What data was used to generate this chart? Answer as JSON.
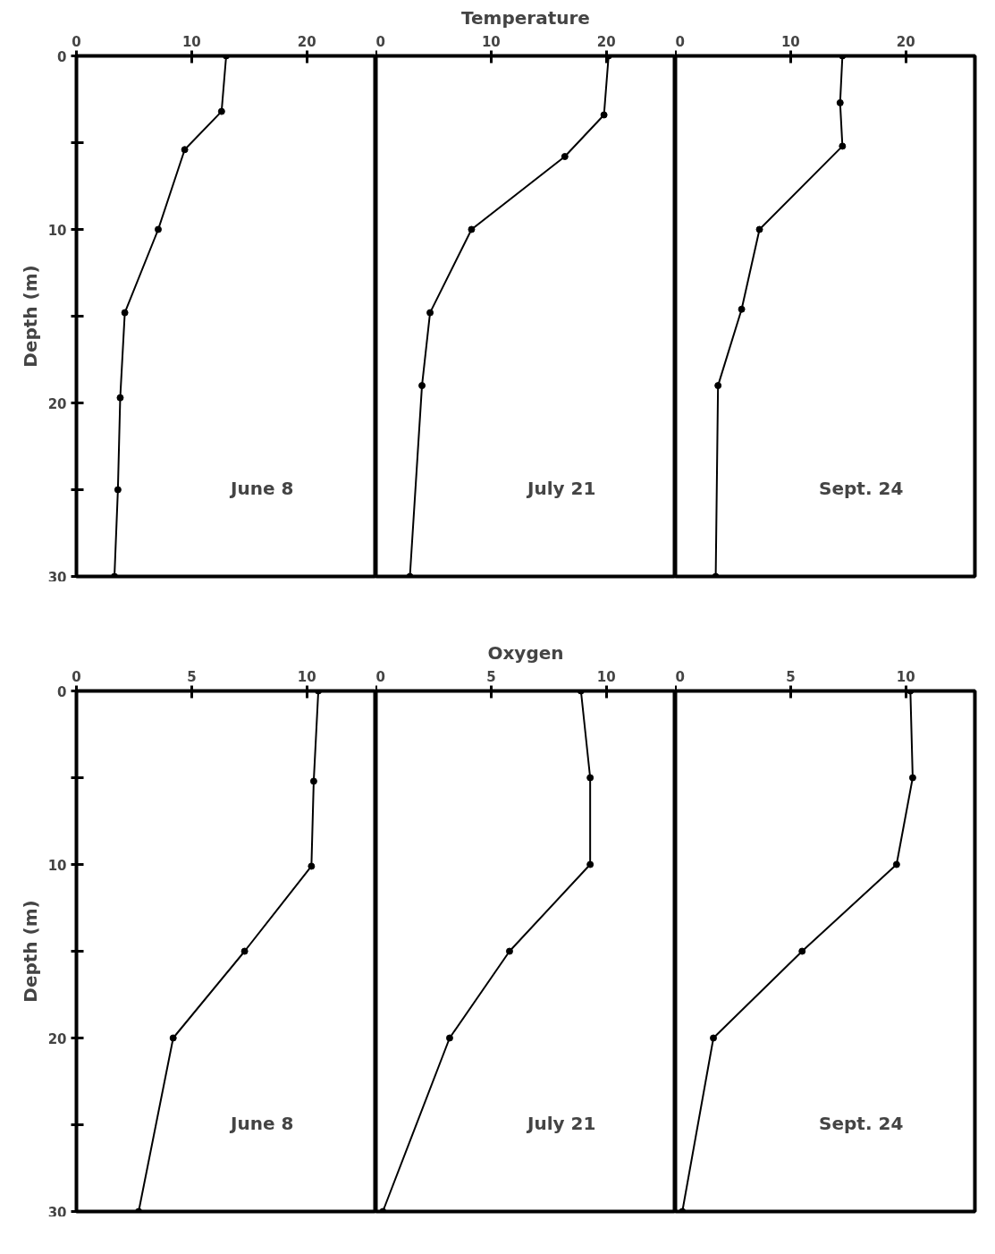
{
  "chart_data": [
    {
      "type": "line",
      "ylabel": "Depth (m)",
      "annotations": [
        "June 8"
      ],
      "xlim": [
        0,
        26
      ],
      "xticks": [
        0,
        10,
        20
      ],
      "ylim": [
        30,
        0
      ],
      "yticks": [
        0,
        {
          "value": 5,
          "label": null
        },
        10,
        {
          "value": 15,
          "label": null
        },
        20,
        {
          "value": 25,
          "label": null
        },
        30
      ],
      "grid": false,
      "marker": "circle",
      "line_style": "solid",
      "series": [
        {
          "color": "#000000",
          "x": [
            13.0,
            12.6,
            9.4,
            7.1,
            4.2,
            3.8,
            3.6,
            3.3
          ],
          "values": [
            0,
            3.2,
            5.4,
            10,
            14.8,
            19.7,
            25,
            30
          ]
        }
      ]
    },
    {
      "type": "line",
      "title": "Temperature",
      "annotations": [
        "July 21"
      ],
      "xlim": [
        0,
        26
      ],
      "xticks": [
        0,
        10,
        20
      ],
      "ylim": [
        30,
        0
      ],
      "tick_labels": "x",
      "grid": false,
      "marker": "circle",
      "line_style": "solid",
      "series": [
        {
          "color": "#000000",
          "x": [
            20.2,
            19.8,
            16.4,
            8.3,
            4.7,
            4.0,
            2.95
          ],
          "values": [
            0,
            3.4,
            5.8,
            10,
            14.8,
            19.0,
            30
          ]
        }
      ]
    },
    {
      "type": "line",
      "annotations": [
        "Sept. 24"
      ],
      "xlim": [
        0,
        26
      ],
      "xticks": [
        0,
        10,
        20
      ],
      "ylim": [
        30,
        0
      ],
      "tick_labels": "x",
      "grid": false,
      "marker": "circle",
      "line_style": "solid",
      "series": [
        {
          "color": "#000000",
          "x": [
            14.5,
            14.3,
            14.5,
            7.3,
            5.75,
            3.7,
            3.5
          ],
          "values": [
            0,
            2.7,
            5.2,
            10,
            14.6,
            19.0,
            30
          ]
        }
      ]
    },
    {
      "type": "line",
      "ylabel": "Depth (m)",
      "annotations": [
        "June 8"
      ],
      "xlim": [
        0,
        13
      ],
      "xticks": [
        0,
        5,
        10
      ],
      "ylim": [
        30,
        0
      ],
      "yticks": [
        0,
        {
          "value": 5,
          "label": null
        },
        10,
        {
          "value": 15,
          "label": null
        },
        20,
        {
          "value": 25,
          "label": null
        },
        30
      ],
      "grid": false,
      "marker": "circle",
      "line_style": "solid",
      "series": [
        {
          "color": "#000000",
          "x": [
            10.5,
            10.3,
            10.2,
            7.3,
            4.2,
            2.7
          ],
          "values": [
            0,
            5.2,
            10.1,
            15,
            20,
            30
          ]
        }
      ]
    },
    {
      "type": "line",
      "title": "Oxygen",
      "annotations": [
        "July 21"
      ],
      "xlim": [
        0,
        13
      ],
      "xticks": [
        0,
        5,
        10
      ],
      "ylim": [
        30,
        0
      ],
      "tick_labels": "x",
      "grid": false,
      "marker": "circle",
      "line_style": "solid",
      "series": [
        {
          "color": "#000000",
          "x": [
            8.9,
            9.3,
            9.3,
            5.8,
            3.2,
            0.3
          ],
          "values": [
            0,
            5,
            10,
            15,
            20,
            30
          ]
        }
      ]
    },
    {
      "type": "line",
      "annotations": [
        "Sept. 24"
      ],
      "xlim": [
        0,
        13
      ],
      "xticks": [
        0,
        5,
        10
      ],
      "ylim": [
        30,
        0
      ],
      "tick_labels": "x",
      "grid": false,
      "marker": "circle",
      "line_style": "solid",
      "series": [
        {
          "color": "#000000",
          "x": [
            10.2,
            10.3,
            9.6,
            5.5,
            1.65,
            0.3
          ],
          "values": [
            0,
            5,
            10,
            15,
            20,
            30
          ]
        }
      ]
    }
  ]
}
